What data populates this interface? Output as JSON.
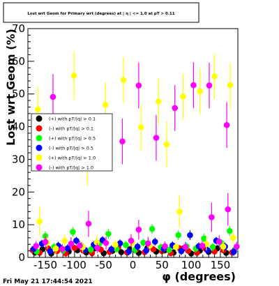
{
  "chart_data": {
    "type": "scatter",
    "title": "Lost wrt Geom for Primary wrt (degrees) at | η | <= 1.0 at pT > 0.11",
    "xlabel": "φ (degrees)",
    "ylabel": "Lost wrt Geom (%)",
    "xlim": [
      -180,
      180
    ],
    "ylim": [
      0,
      70
    ],
    "xticks": [
      "-150",
      "-100",
      "-50",
      "0",
      "50",
      "100",
      "150"
    ],
    "xtick_values": [
      -150,
      -100,
      -50,
      0,
      50,
      100,
      150
    ],
    "yticks": [
      "0",
      "10",
      "20",
      "30",
      "40",
      "50",
      "60",
      "70"
    ],
    "ytick_values": [
      0,
      10,
      20,
      30,
      40,
      50,
      60,
      70
    ],
    "grid": false,
    "legend_position": "left",
    "timestamp": "Fri May 21 17:44:54 2021",
    "series": [
      {
        "name": "(+) with pT/|q| > 0.1",
        "color": "#000000",
        "points": [
          [
            -168,
            1.5,
            1
          ],
          [
            -155,
            2.5,
            1
          ],
          [
            -140,
            1.2,
            1
          ],
          [
            -125,
            3,
            1
          ],
          [
            -110,
            1.8,
            1
          ],
          [
            -95,
            2.2,
            1
          ],
          [
            -80,
            1.5,
            1
          ],
          [
            -65,
            2.8,
            1
          ],
          [
            -50,
            1.3,
            1
          ],
          [
            -35,
            2,
            1
          ],
          [
            -20,
            1.6,
            1
          ],
          [
            -5,
            2.5,
            1
          ],
          [
            10,
            1.4,
            1
          ],
          [
            25,
            2.9,
            1
          ],
          [
            40,
            1.8,
            1
          ],
          [
            55,
            2.2,
            1
          ],
          [
            70,
            1.5,
            1
          ],
          [
            85,
            2.6,
            1
          ],
          [
            100,
            1.2,
            1
          ],
          [
            115,
            2.1,
            1
          ],
          [
            130,
            1.7,
            1
          ],
          [
            145,
            2.8,
            1
          ],
          [
            160,
            1.4,
            1
          ],
          [
            175,
            2.3,
            1
          ]
        ]
      },
      {
        "name": "(-) with pT/|q| > 0.1",
        "color": "#ff0000",
        "points": [
          [
            -172,
            2.2,
            1
          ],
          [
            -160,
            1.4,
            1
          ],
          [
            -145,
            2.7,
            1
          ],
          [
            -130,
            1.9,
            1
          ],
          [
            -115,
            1.2,
            1
          ],
          [
            -100,
            2.9,
            1
          ],
          [
            -85,
            2.1,
            1
          ],
          [
            -70,
            1.3,
            1
          ],
          [
            -55,
            2.4,
            1
          ],
          [
            -40,
            1.7,
            1
          ],
          [
            -25,
            3.1,
            1
          ],
          [
            -10,
            1.5,
            1
          ],
          [
            5,
            2.3,
            1
          ],
          [
            20,
            1.6,
            1
          ],
          [
            35,
            2.5,
            1
          ],
          [
            50,
            1.9,
            1
          ],
          [
            65,
            1.3,
            1
          ],
          [
            80,
            2.8,
            1
          ],
          [
            95,
            2.0,
            1
          ],
          [
            110,
            1.4,
            1
          ],
          [
            125,
            2.6,
            1
          ],
          [
            140,
            1.8,
            1
          ],
          [
            155,
            2.2,
            1
          ],
          [
            170,
            1.5,
            1
          ]
        ]
      },
      {
        "name": "(+) with pT/|q| > 0.5",
        "color": "#00ff00",
        "points": [
          [
            -165,
            1.8,
            1.2
          ],
          [
            -150,
            6.5,
            1.5
          ],
          [
            -135,
            3.2,
            1.2
          ],
          [
            -120,
            2.1,
            1.2
          ],
          [
            -103,
            7.8,
            1.5
          ],
          [
            -88,
            3.5,
            1.2
          ],
          [
            -72,
            2.4,
            1.2
          ],
          [
            -58,
            4.1,
            1.2
          ],
          [
            -42,
            7.2,
            1.5
          ],
          [
            -28,
            2.6,
            1.2
          ],
          [
            -12,
            3.8,
            1.2
          ],
          [
            3,
            2.2,
            1.2
          ],
          [
            18,
            4.5,
            1.2
          ],
          [
            33,
            8.7,
            1.5
          ],
          [
            48,
            3.1,
            1.2
          ],
          [
            62,
            2.3,
            1.2
          ],
          [
            78,
            6.8,
            1.5
          ],
          [
            92,
            3.4,
            1.2
          ],
          [
            108,
            2.7,
            1.2
          ],
          [
            122,
            5.8,
            1.5
          ],
          [
            137,
            3.2,
            1.2
          ],
          [
            152,
            4.4,
            1.2
          ],
          [
            166,
            8.1,
            1.5
          ],
          [
            176,
            2.5,
            1.2
          ]
        ]
      },
      {
        "name": "(-) with pT/|q| > 0.5",
        "color": "#0000ff",
        "points": [
          [
            -170,
            2.6,
            1.2
          ],
          [
            -156,
            4.2,
            1.2
          ],
          [
            -142,
            1.9,
            1.2
          ],
          [
            -128,
            3.6,
            1.2
          ],
          [
            -112,
            2.8,
            1.2
          ],
          [
            -97,
            5.1,
            1.2
          ],
          [
            -82,
            2.3,
            1.2
          ],
          [
            -67,
            3.9,
            1.2
          ],
          [
            -52,
            5.3,
            1.2
          ],
          [
            -37,
            2.5,
            1.2
          ],
          [
            -22,
            4.3,
            1.2
          ],
          [
            -7,
            1.8,
            1.2
          ],
          [
            8,
            3.3,
            1.2
          ],
          [
            23,
            2.1,
            1.2
          ],
          [
            38,
            4.8,
            1.2
          ],
          [
            53,
            2.6,
            1.2
          ],
          [
            68,
            3.7,
            1.2
          ],
          [
            83,
            1.9,
            1.2
          ],
          [
            98,
            6.8,
            1.5
          ],
          [
            113,
            3.4,
            1.2
          ],
          [
            128,
            2.2,
            1.2
          ],
          [
            143,
            5.1,
            1.2
          ],
          [
            158,
            3.3,
            1.2
          ],
          [
            173,
            1.7,
            1.2
          ]
        ]
      },
      {
        "name": "(+) with pT/|q| > 1.0",
        "color": "#ffff00",
        "points": [
          [
            -163,
            45.3,
            7
          ],
          [
            -160,
            11,
            4.5
          ],
          [
            -147,
            4.5,
            2
          ],
          [
            -132,
            2.7,
            1.5
          ],
          [
            -117,
            5.1,
            2
          ],
          [
            -101,
            55.6,
            7.5
          ],
          [
            -86,
            3.1,
            1.5
          ],
          [
            -78,
            28,
            6
          ],
          [
            -62,
            4.6,
            2
          ],
          [
            -47,
            46.7,
            7
          ],
          [
            -30,
            3.9,
            1.5
          ],
          [
            -16,
            54.3,
            7
          ],
          [
            -1,
            4.4,
            2
          ],
          [
            14,
            39.8,
            7
          ],
          [
            29,
            3.6,
            1.5
          ],
          [
            44,
            47.7,
            7
          ],
          [
            58,
            34.6,
            7
          ],
          [
            74,
            3.2,
            1.5
          ],
          [
            80,
            14,
            5
          ],
          [
            86,
            49.2,
            7
          ],
          [
            115,
            50.8,
            7
          ],
          [
            126,
            4.1,
            2
          ],
          [
            140,
            55.4,
            7
          ],
          [
            155,
            3.3,
            1.5
          ],
          [
            167,
            52.7,
            7
          ],
          [
            172,
            6,
            2
          ]
        ]
      },
      {
        "name": "(-) with pT/|q| > 1.0",
        "color": "#ff00ff",
        "points": [
          [
            -166,
            3.5,
            1.5
          ],
          [
            -150,
            4.7,
            2
          ],
          [
            -137,
            49.1,
            7
          ],
          [
            -121,
            2.6,
            1.5
          ],
          [
            -106,
            4.2,
            2
          ],
          [
            -91,
            3.6,
            1.5
          ],
          [
            -76,
            10.3,
            4
          ],
          [
            -61,
            2.9,
            1.5
          ],
          [
            -46,
            4.4,
            2
          ],
          [
            -18,
            35.5,
            7
          ],
          [
            -3,
            5.1,
            2
          ],
          [
            10,
            52.6,
            7
          ],
          [
            10,
            8.5,
            3
          ],
          [
            26,
            4.3,
            2
          ],
          [
            40,
            36.6,
            7
          ],
          [
            55,
            3.4,
            1.5
          ],
          [
            72,
            45.7,
            7
          ],
          [
            90,
            3.2,
            1.5
          ],
          [
            104,
            52.7,
            7
          ],
          [
            119,
            3.6,
            1.5
          ],
          [
            131,
            52.6,
            7
          ],
          [
            135,
            12.3,
            4.5
          ],
          [
            148,
            4.8,
            2
          ],
          [
            161,
            40.5,
            7
          ],
          [
            163,
            14.7,
            5
          ],
          [
            178,
            3.3,
            1.5
          ]
        ]
      }
    ]
  }
}
